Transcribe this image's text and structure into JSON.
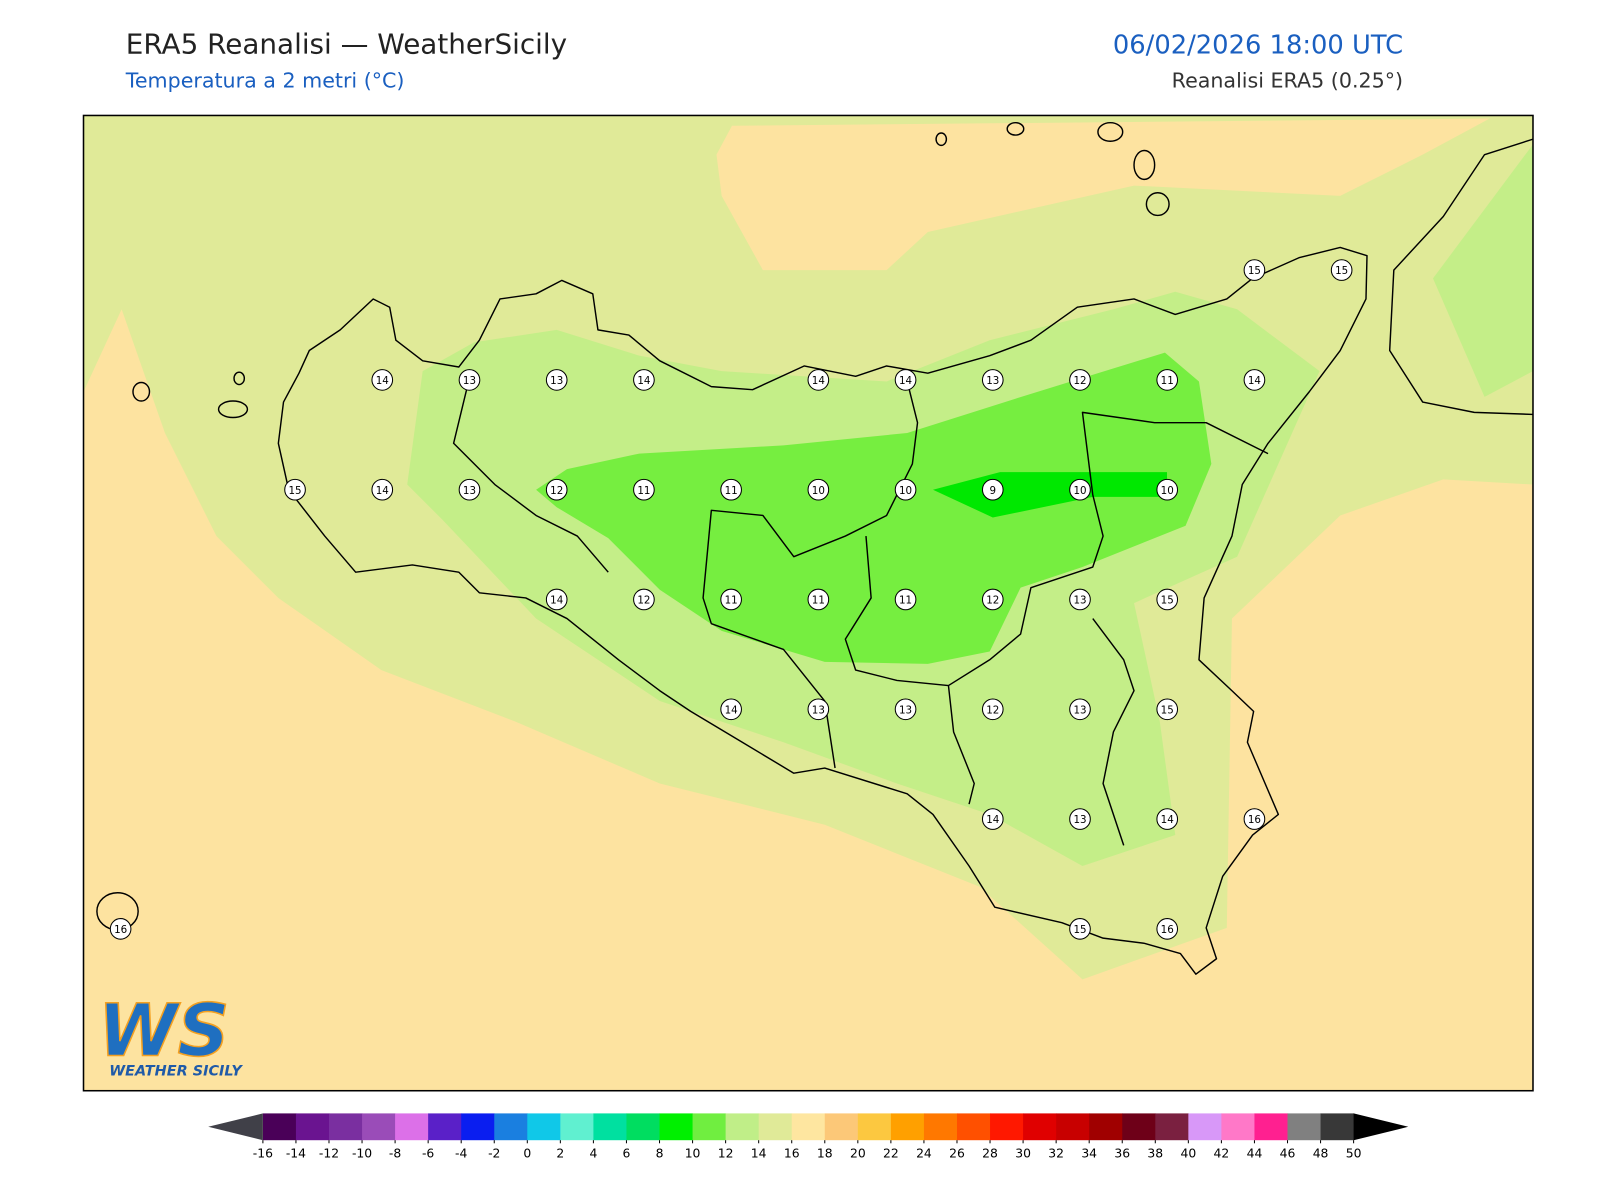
{
  "header": {
    "title": "ERA5 Reanalisi — WeatherSicily",
    "subtitle": "Temperatura a 2 metri (°C)",
    "datetime": "06/02/2026 18:00 UTC",
    "source": "Reanalisi ERA5 (0.25°)"
  },
  "grid": {
    "rows": [
      [
        null,
        null,
        null,
        null,
        null,
        null,
        null,
        null,
        null,
        null,
        null,
        null,
        null,
        15,
        15
      ],
      [
        null,
        null,
        null,
        14,
        13,
        13,
        14,
        null,
        14,
        14,
        13,
        12,
        11,
        14,
        null
      ],
      [
        null,
        null,
        15,
        14,
        13,
        12,
        11,
        11,
        10,
        10,
        9,
        10,
        10,
        null,
        null
      ],
      [
        null,
        null,
        null,
        null,
        null,
        14,
        12,
        11,
        11,
        11,
        12,
        13,
        15,
        null,
        null
      ],
      [
        null,
        null,
        null,
        null,
        null,
        null,
        null,
        14,
        13,
        13,
        12,
        13,
        15,
        null,
        null
      ],
      [
        null,
        null,
        null,
        null,
        null,
        null,
        null,
        null,
        null,
        null,
        14,
        13,
        14,
        16,
        null
      ],
      [
        16,
        null,
        null,
        null,
        null,
        null,
        null,
        null,
        null,
        null,
        null,
        15,
        16,
        null,
        null
      ]
    ]
  },
  "colorbar": {
    "ticks": [
      -16,
      -14,
      -12,
      -10,
      -8,
      -6,
      -4,
      -2,
      0,
      2,
      4,
      6,
      8,
      10,
      12,
      14,
      16,
      18,
      20,
      22,
      24,
      26,
      28,
      30,
      32,
      34,
      36,
      38,
      40,
      42,
      44,
      46,
      48,
      50
    ],
    "colors": [
      "#4a0058",
      "#6a1490",
      "#7a2fa0",
      "#9a4cb8",
      "#dc70e8",
      "#5a20c8",
      "#0a1ef0",
      "#1a7fe0",
      "#10c8e8",
      "#60f0d0",
      "#00e0a0",
      "#00dd60",
      "#00f000",
      "#70ee40",
      "#c0ee88",
      "#e0ea98",
      "#fee6a0",
      "#fcc878",
      "#fcc840",
      "#ffa000",
      "#ff7800",
      "#ff5000",
      "#ff1800",
      "#e00000",
      "#c80000",
      "#a00000",
      "#6e0018",
      "#7a2040",
      "#d898f8",
      "#ff78c8",
      "#ff2090",
      "#808080",
      "#383838"
    ],
    "under_color": "#404048",
    "over_color": "#000000"
  },
  "logo": {
    "mark": "WS",
    "text": "WEATHER SICILY"
  }
}
